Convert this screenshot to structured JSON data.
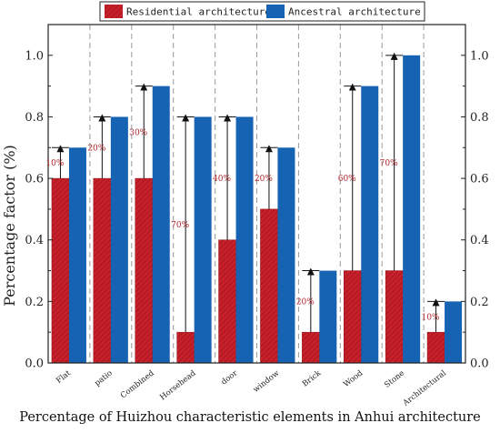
{
  "chart_data": {
    "type": "bar",
    "title": "Percentage of Huizhou characteristic elements in Anhui architecture",
    "xlabel": "",
    "ylabel": "Percentage factor (%)",
    "ylim": [
      0,
      1.1
    ],
    "yticks": [
      "0.0",
      "0.2",
      "0.4",
      "0.6",
      "0.8",
      "1.0"
    ],
    "categories": [
      "Flat",
      "patio",
      "Combined",
      "Horsehead",
      "door",
      "window",
      "Brick",
      "Wood",
      "Stone",
      "Architectural"
    ],
    "series": [
      {
        "name": "Residential architecture",
        "values": [
          0.6,
          0.6,
          0.6,
          0.1,
          0.4,
          0.5,
          0.1,
          0.3,
          0.3,
          0.1
        ]
      },
      {
        "name": "Ancestral architecture",
        "values": [
          0.7,
          0.8,
          0.9,
          0.8,
          0.8,
          0.7,
          0.3,
          0.9,
          1.0,
          0.2
        ]
      }
    ],
    "annotations": [
      "10%",
      "20%",
      "30%",
      "70%",
      "40%",
      "20%",
      "20%",
      "60%",
      "70%",
      "10%"
    ],
    "legend_position": "top",
    "colors": {
      "residential": "#c8202a",
      "ancestral": "#1663b3",
      "annotation": "#b0282d",
      "separator": "#9a9a9a"
    }
  }
}
